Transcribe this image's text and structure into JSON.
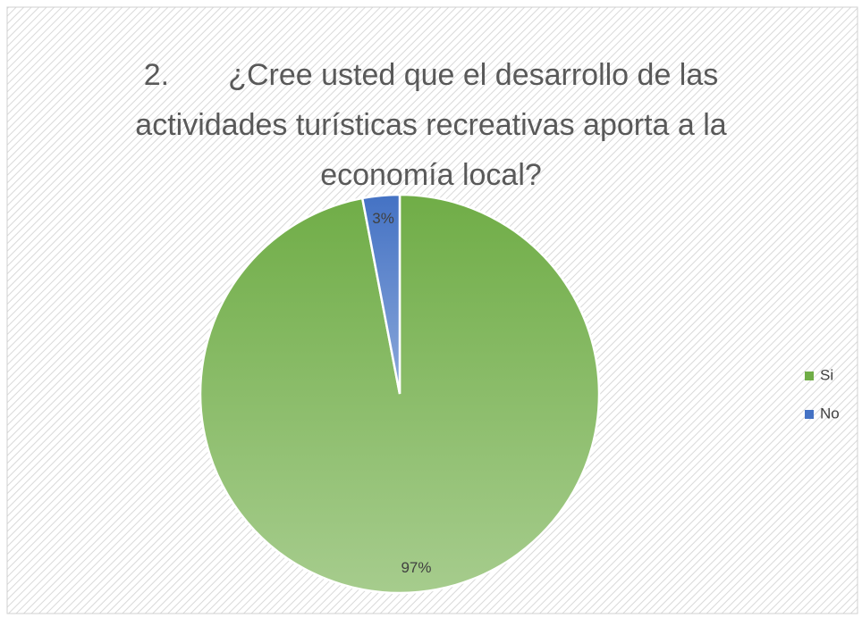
{
  "chart_data": {
    "type": "pie",
    "title": "2.       ¿Cree usted que el desarrollo de las actividades turísticas recreativas aporta a la economía local?",
    "categories": [
      "Si",
      "No"
    ],
    "values": [
      97,
      3
    ],
    "value_labels": [
      "97%",
      "3%"
    ],
    "colors": [
      "#70ad47",
      "#4472c4"
    ],
    "legend": "right"
  }
}
